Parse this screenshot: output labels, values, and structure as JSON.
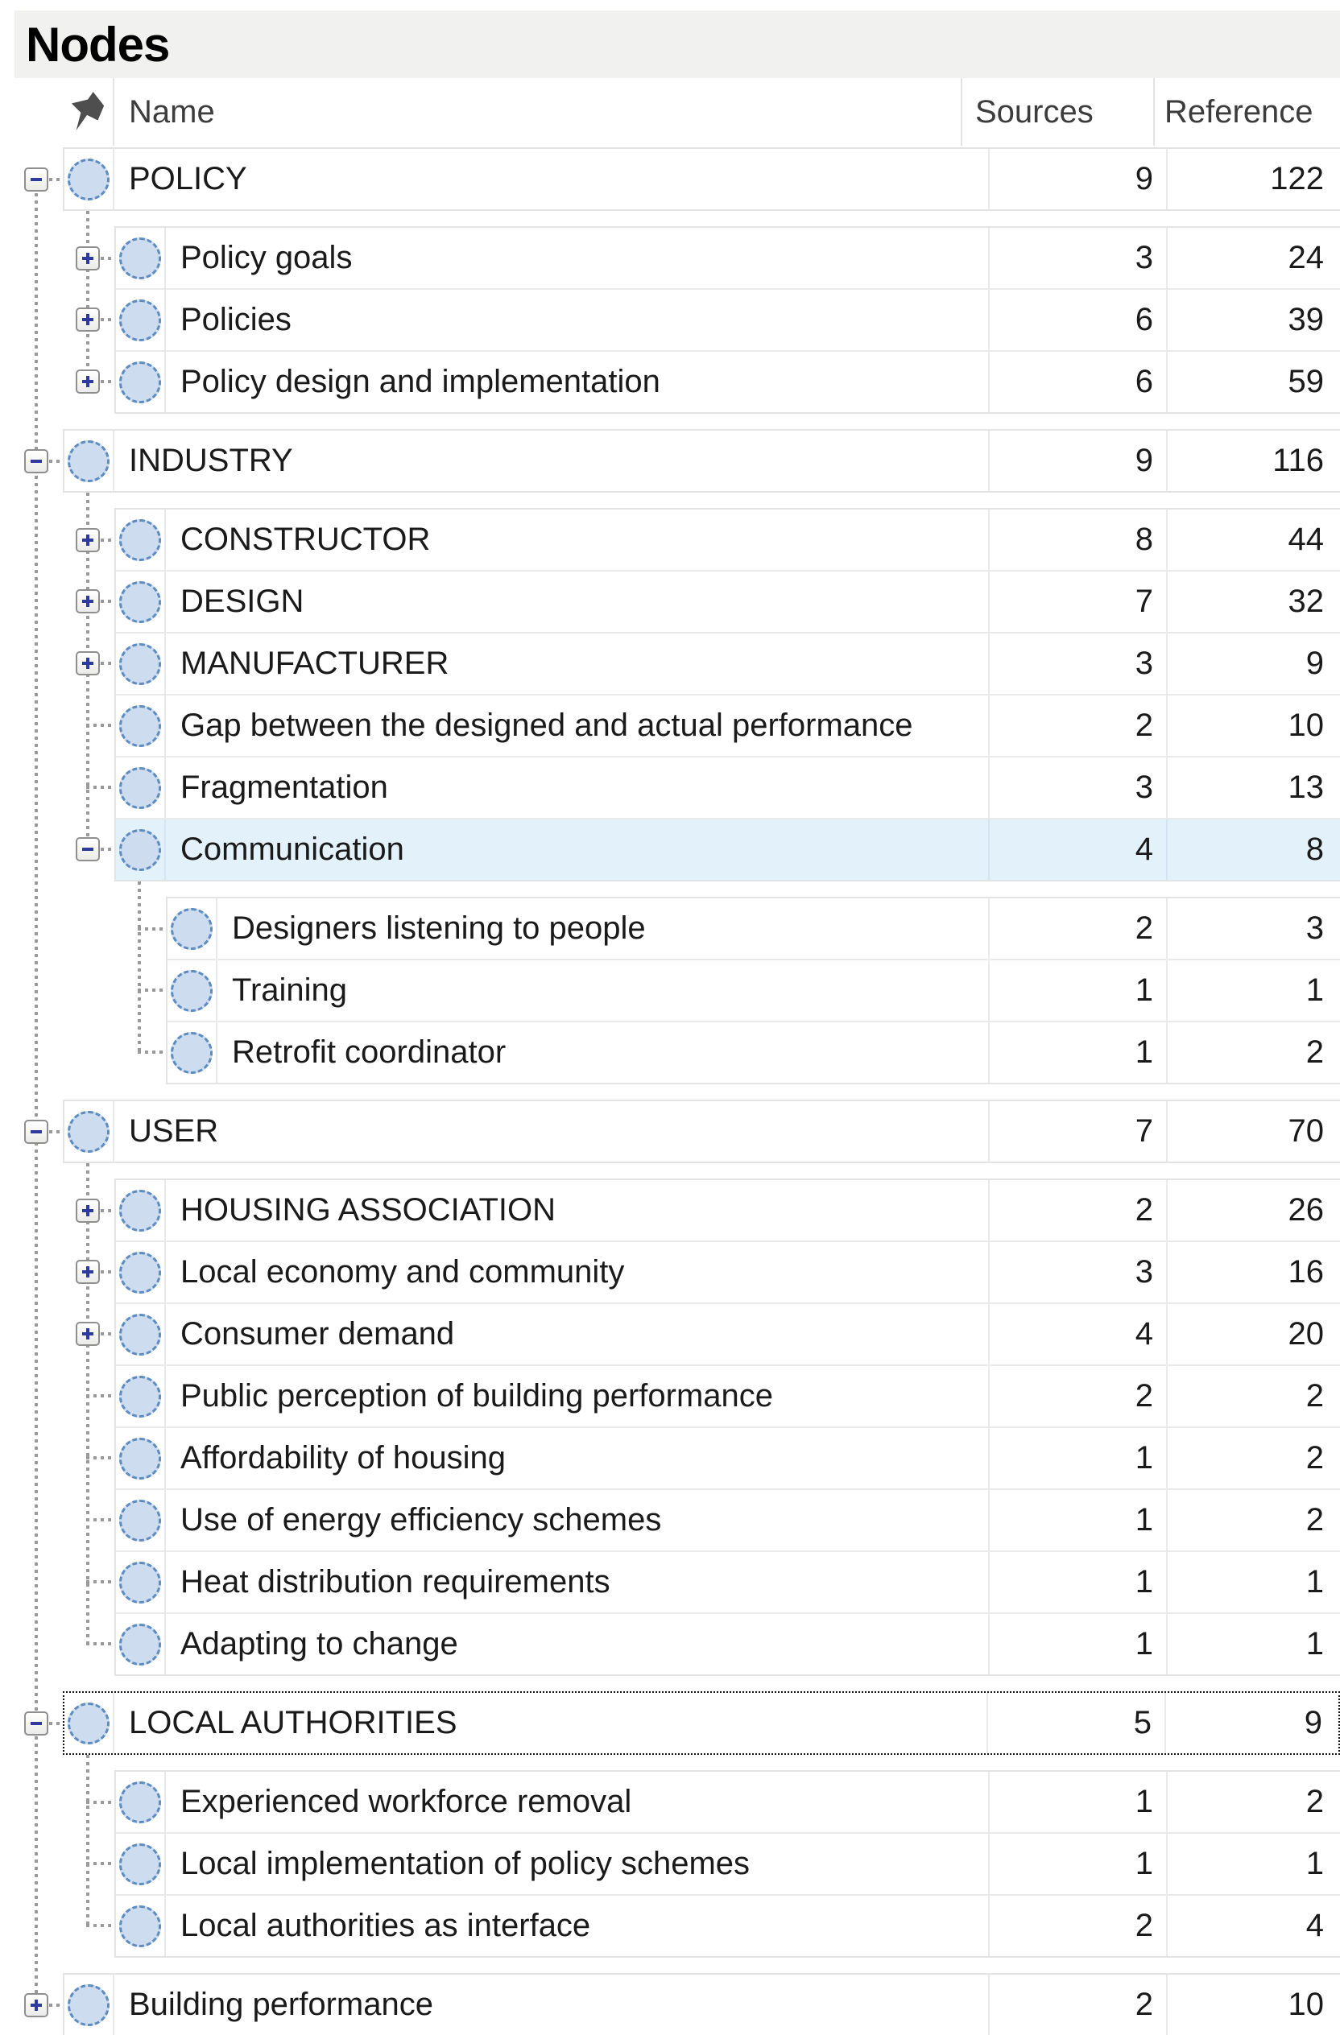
{
  "window": {
    "title": "Nodes"
  },
  "columns": {
    "name": "Name",
    "sources": "Sources",
    "reference": "Reference"
  },
  "icons": {
    "header_pin": "pin-icon",
    "node_circle": "node-circle-icon",
    "expander_plus": "plus",
    "expander_minus": "minus"
  },
  "colors": {
    "titlebar_bg": "#f1f1ef",
    "grid_border": "#e3e3e3",
    "node_fill": "#cdddef",
    "node_border": "#5e8cc0",
    "highlight_row": "#e3f1fb",
    "expander_glyph": "#2e3a9e",
    "connector_dots": "#9a9a9a",
    "focus_border": "#141414"
  },
  "tree": {
    "blocks": [
      {
        "level": 0,
        "rows": [
          {
            "name": "POLICY",
            "sources": "9",
            "references": "122",
            "expander": "minus"
          }
        ]
      },
      {
        "level": 1,
        "rows": [
          {
            "name": "Policy goals",
            "sources": "3",
            "references": "24",
            "expander": "plus"
          },
          {
            "name": "Policies",
            "sources": "6",
            "references": "39",
            "expander": "plus"
          },
          {
            "name": "Policy design and implementation",
            "sources": "6",
            "references": "59",
            "expander": "plus"
          }
        ]
      },
      {
        "level": 0,
        "rows": [
          {
            "name": "INDUSTRY",
            "sources": "9",
            "references": "116",
            "expander": "minus"
          }
        ]
      },
      {
        "level": 1,
        "rows": [
          {
            "name": "CONSTRUCTOR",
            "sources": "8",
            "references": "44",
            "expander": "plus"
          },
          {
            "name": "DESIGN",
            "sources": "7",
            "references": "32",
            "expander": "plus"
          },
          {
            "name": "MANUFACTURER",
            "sources": "3",
            "references": "9",
            "expander": "plus"
          },
          {
            "name": "Gap between the designed and actual performance",
            "sources": "2",
            "references": "10",
            "expander": "none"
          },
          {
            "name": "Fragmentation",
            "sources": "3",
            "references": "13",
            "expander": "none"
          },
          {
            "name": "Communication",
            "sources": "4",
            "references": "8",
            "expander": "minus",
            "highlighted": true
          }
        ]
      },
      {
        "level": 2,
        "rows": [
          {
            "name": "Designers listening to people",
            "sources": "2",
            "references": "3",
            "expander": "none"
          },
          {
            "name": "Training",
            "sources": "1",
            "references": "1",
            "expander": "none"
          },
          {
            "name": "Retrofit coordinator",
            "sources": "1",
            "references": "2",
            "expander": "none"
          }
        ]
      },
      {
        "level": 0,
        "rows": [
          {
            "name": "USER",
            "sources": "7",
            "references": "70",
            "expander": "minus"
          }
        ]
      },
      {
        "level": 1,
        "rows": [
          {
            "name": "HOUSING ASSOCIATION",
            "sources": "2",
            "references": "26",
            "expander": "plus"
          },
          {
            "name": "Local economy and community",
            "sources": "3",
            "references": "16",
            "expander": "plus"
          },
          {
            "name": "Consumer demand",
            "sources": "4",
            "references": "20",
            "expander": "plus"
          },
          {
            "name": "Public perception of building performance",
            "sources": "2",
            "references": "2",
            "expander": "none"
          },
          {
            "name": "Affordability of housing",
            "sources": "1",
            "references": "2",
            "expander": "none"
          },
          {
            "name": "Use of energy efficiency schemes",
            "sources": "1",
            "references": "2",
            "expander": "none"
          },
          {
            "name": "Heat distribution requirements",
            "sources": "1",
            "references": "1",
            "expander": "none"
          },
          {
            "name": "Adapting to change",
            "sources": "1",
            "references": "1",
            "expander": "none"
          }
        ]
      },
      {
        "level": 0,
        "rows": [
          {
            "name": "LOCAL AUTHORITIES",
            "sources": "5",
            "references": "9",
            "expander": "minus",
            "focused": true
          }
        ]
      },
      {
        "level": 1,
        "rows": [
          {
            "name": "Experienced workforce removal",
            "sources": "1",
            "references": "2",
            "expander": "none"
          },
          {
            "name": "Local implementation of policy schemes",
            "sources": "1",
            "references": "1",
            "expander": "none"
          },
          {
            "name": "Local authorities as interface",
            "sources": "2",
            "references": "4",
            "expander": "none"
          }
        ]
      },
      {
        "level": 0,
        "rows": [
          {
            "name": "Building performance",
            "sources": "2",
            "references": "10",
            "expander": "plus"
          }
        ]
      }
    ]
  }
}
